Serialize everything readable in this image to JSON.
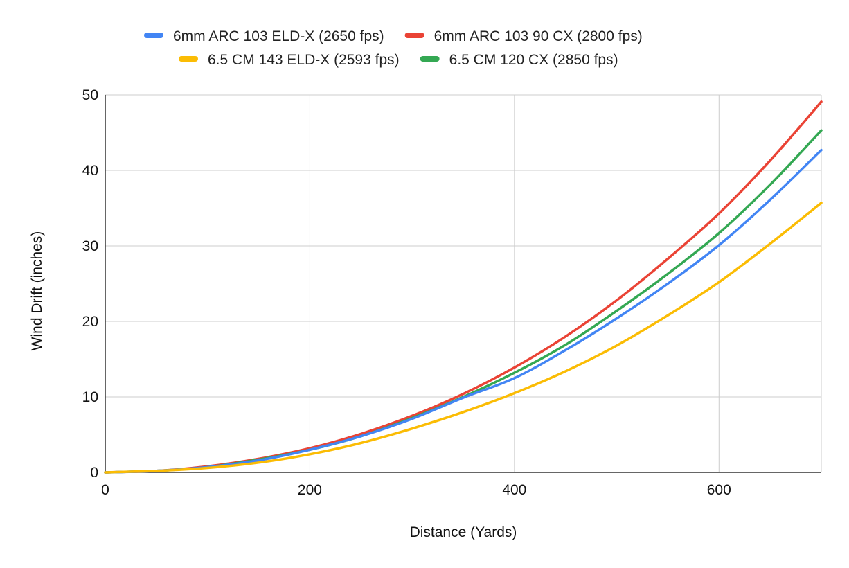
{
  "chart_data": {
    "type": "line",
    "title": "",
    "xlabel": "Distance (Yards)",
    "ylabel": "Wind Drift (inches)",
    "xlim": [
      0,
      700
    ],
    "ylim": [
      0,
      50
    ],
    "xticks": [
      0,
      200,
      400,
      600
    ],
    "yticks": [
      0,
      10,
      20,
      30,
      40,
      50
    ],
    "grid": true,
    "legend_position": "top",
    "x": [
      0,
      50,
      100,
      150,
      200,
      250,
      300,
      350,
      400,
      450,
      500,
      550,
      600,
      650,
      700
    ],
    "series": [
      {
        "name": "6mm ARC 103 ELD-X (2650 fps)",
        "color": "#4285F4",
        "values": [
          0,
          0.2,
          0.7,
          1.6,
          3.0,
          4.8,
          7.1,
          9.9,
          12.5,
          16.2,
          20.4,
          25.0,
          30.1,
          36.1,
          42.7
        ]
      },
      {
        "name": "6mm ARC 103 90 CX (2800 fps)",
        "color": "#EA4335",
        "values": [
          0,
          0.2,
          0.8,
          1.8,
          3.2,
          5.1,
          7.5,
          10.4,
          13.9,
          18.0,
          22.8,
          28.3,
          34.3,
          41.3,
          49.1
        ]
      },
      {
        "name": "6.5 CM 143 ELD-X  (2593 fps)",
        "color": "#FBBC04",
        "values": [
          0,
          0.2,
          0.6,
          1.3,
          2.4,
          3.9,
          5.8,
          8.0,
          10.5,
          13.4,
          16.8,
          20.8,
          25.2,
          30.3,
          35.7
        ]
      },
      {
        "name": "6.5 CM 120 CX (2850 fps)",
        "color": "#34A853",
        "values": [
          0,
          0.2,
          0.7,
          1.7,
          3.0,
          4.8,
          7.2,
          10.0,
          13.2,
          16.9,
          21.4,
          26.3,
          31.7,
          38.1,
          45.3
        ]
      }
    ]
  }
}
